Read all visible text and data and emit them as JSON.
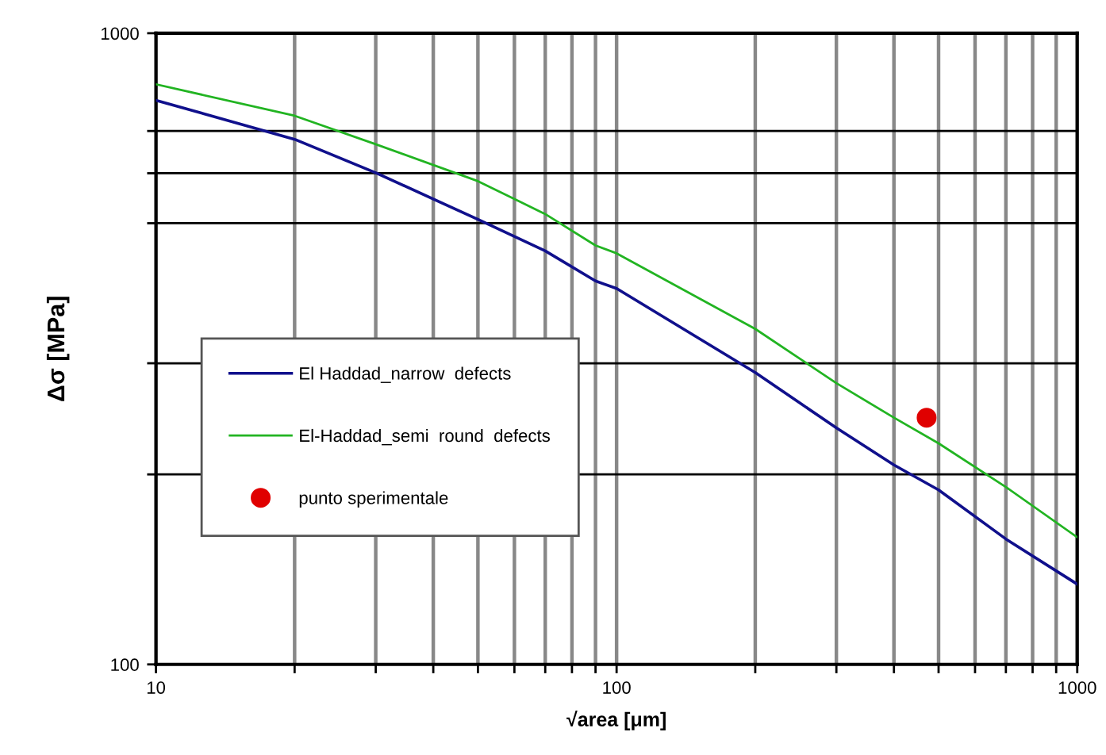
{
  "chart_data": {
    "type": "line",
    "xlabel": "√area [μm]",
    "ylabel": "Δσ [MPa]",
    "log": "xy",
    "xlim": [
      10,
      1000
    ],
    "ylim": [
      100,
      1000
    ],
    "xticks": [
      10,
      {
        "value": 20,
        "label": null
      },
      {
        "value": 30,
        "label": null
      },
      {
        "value": 40,
        "label": null
      },
      {
        "value": 50,
        "label": null
      },
      {
        "value": 60,
        "label": null
      },
      {
        "value": 70,
        "label": null
      },
      {
        "value": 80,
        "label": null
      },
      {
        "value": 90,
        "label": null
      },
      100,
      {
        "value": 200,
        "label": null
      },
      {
        "value": 300,
        "label": null
      },
      {
        "value": 400,
        "label": null
      },
      {
        "value": 500,
        "label": null
      },
      {
        "value": 600,
        "label": null
      },
      {
        "value": 700,
        "label": null
      },
      {
        "value": 800,
        "label": null
      },
      {
        "value": 900,
        "label": null
      },
      1000
    ],
    "yticks": [
      100,
      {
        "value": 200,
        "label": null
      },
      {
        "value": 300,
        "label": null
      },
      {
        "value": 500,
        "label": null
      },
      {
        "value": 600,
        "label": null
      },
      {
        "value": 700,
        "label": null
      },
      1000
    ],
    "grid": true,
    "legend": "center left",
    "series": [
      {
        "name": "El Haddad_narrow  defects",
        "color": "#10108c",
        "type": "line",
        "x": [
          10,
          20,
          30,
          50,
          70,
          90,
          100,
          200,
          300,
          400,
          500,
          700,
          1000
        ],
        "values": [
          783,
          679,
          601,
          507,
          452,
          405,
          394,
          290,
          237,
          207,
          189,
          158,
          134
        ]
      },
      {
        "name": "El-Haddad_semi  round  defects",
        "color": "#22b422",
        "x": [
          10,
          20,
          30,
          50,
          70,
          90,
          100,
          200,
          300,
          400,
          500,
          700,
          1000
        ],
        "values": [
          830,
          740,
          667,
          583,
          517,
          461,
          448,
          340,
          279,
          246,
          224,
          191,
          159
        ]
      },
      {
        "name": "punto sperimentale",
        "color": "#e00000",
        "type": "scatter",
        "x": [
          471
        ],
        "values": [
          246
        ]
      }
    ]
  }
}
